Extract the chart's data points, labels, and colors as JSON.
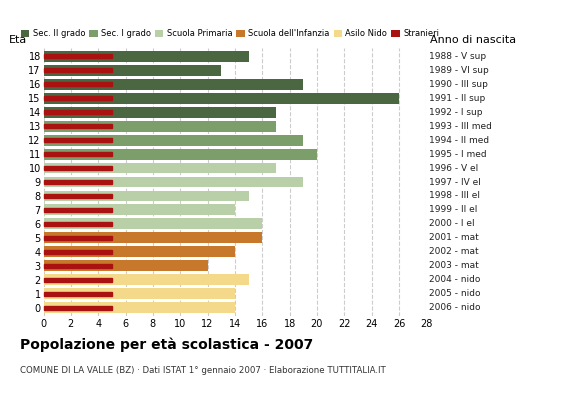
{
  "ages": [
    18,
    17,
    16,
    15,
    14,
    13,
    12,
    11,
    10,
    9,
    8,
    7,
    6,
    5,
    4,
    3,
    2,
    1,
    0
  ],
  "years": [
    "1988 - V sup",
    "1989 - VI sup",
    "1990 - III sup",
    "1991 - II sup",
    "1992 - I sup",
    "1993 - III med",
    "1994 - II med",
    "1995 - I med",
    "1996 - V el",
    "1997 - IV el",
    "1998 - III el",
    "1999 - II el",
    "2000 - I el",
    "2001 - mat",
    "2002 - mat",
    "2003 - mat",
    "2004 - nido",
    "2005 - nido",
    "2006 - nido"
  ],
  "values": [
    15,
    13,
    19,
    26,
    17,
    17,
    19,
    20,
    17,
    19,
    15,
    14,
    16,
    16,
    14,
    12,
    15,
    14,
    14
  ],
  "categories": [
    "Sec. II grado",
    "Sec. I grado",
    "Scuola Primaria",
    "Scuola dell'Infanzia",
    "Asilo Nido",
    "Stranieri"
  ],
  "bar_colors": [
    "#4a6741",
    "#4a6741",
    "#4a6741",
    "#4a6741",
    "#4a6741",
    "#7b9e6b",
    "#7b9e6b",
    "#7b9e6b",
    "#b8cfa8",
    "#b8cfa8",
    "#b8cfa8",
    "#b8cfa8",
    "#b8cfa8",
    "#c8782a",
    "#c8782a",
    "#c8782a",
    "#f5d98a",
    "#f5d98a",
    "#f5d98a"
  ],
  "stranieri_color": "#aa1111",
  "legend_colors": [
    "#4a6741",
    "#7b9e6b",
    "#b8cfa8",
    "#c8782a",
    "#f5d98a",
    "#aa1111"
  ],
  "title": "Popolazione per età scolastica - 2007",
  "subtitle": "COMUNE DI LA VALLE (BZ) · Dati ISTAT 1° gennaio 2007 · Elaborazione TUTTITALIA.IT",
  "label_eta": "Età",
  "label_anno": "Anno di nascita",
  "xlim": [
    0,
    28
  ],
  "xticks": [
    0,
    2,
    4,
    6,
    8,
    10,
    12,
    14,
    16,
    18,
    20,
    22,
    24,
    26,
    28
  ],
  "bg_color": "#ffffff",
  "grid_color": "#cccccc"
}
